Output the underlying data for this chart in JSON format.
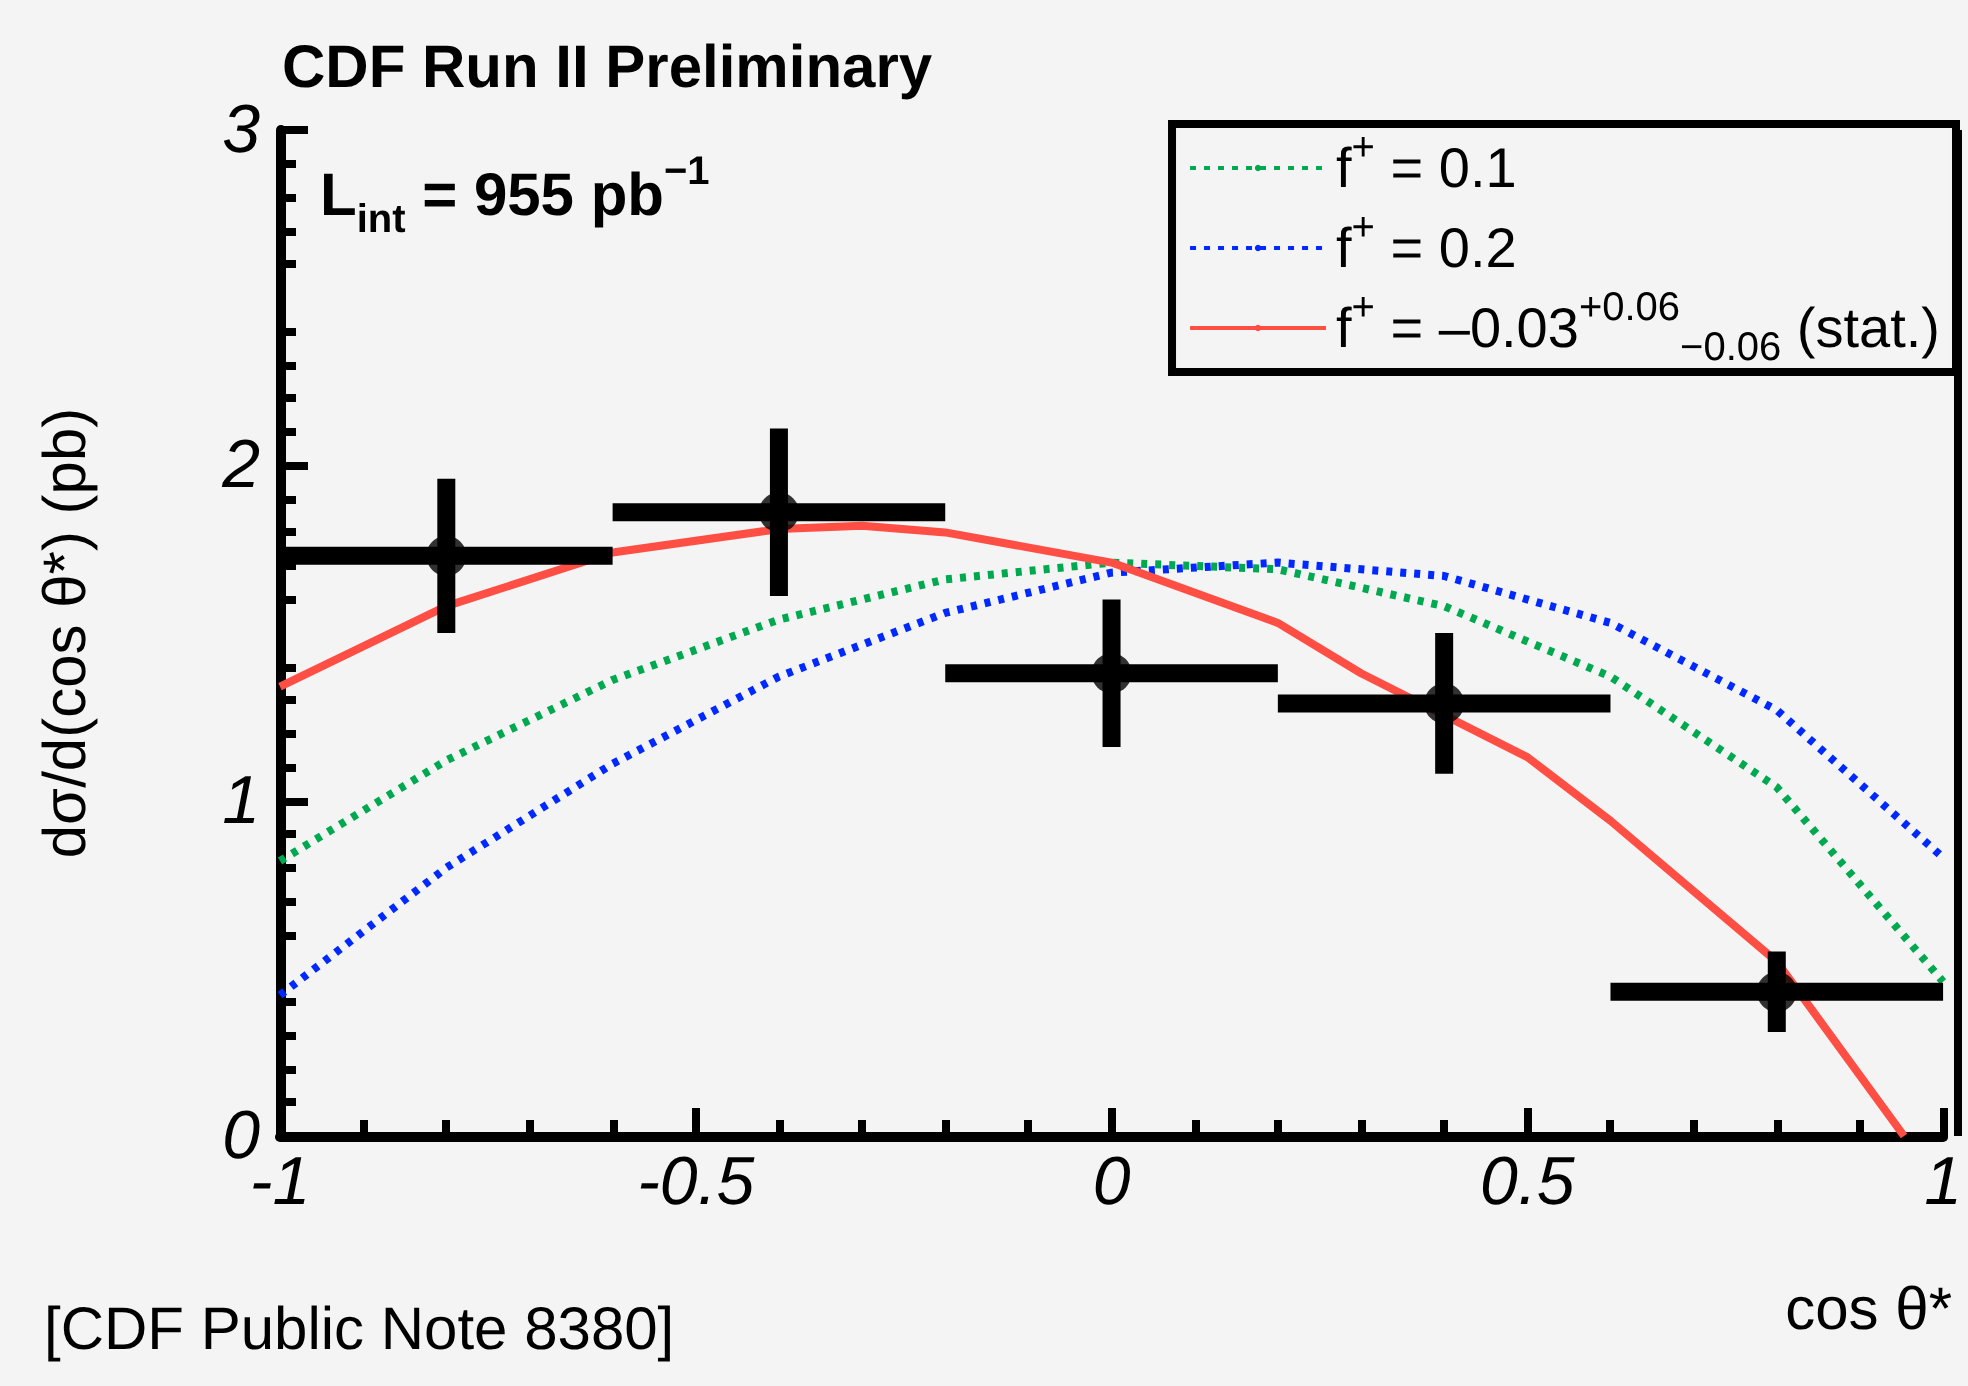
{
  "chart_data": {
    "type": "line",
    "title": "CDF Run II Preliminary",
    "xlabel": "cos θ*",
    "ylabel": "dσ/d(cos θ*) (pb)",
    "annotations": [
      "L$_{int}$ = 955 pb$^{−1}$",
      "[CDF Public Note 8380]"
    ],
    "series": [
      {
        "name": "f$^{+}$ = 0.1",
        "color": "#00a94f",
        "line_style": "dotted",
        "x": [
          -1,
          -0.8,
          -0.6,
          -0.4,
          -0.2,
          0,
          0.2,
          0.4,
          0.6,
          0.8,
          1
        ],
        "values": [
          0.82,
          1.12,
          1.36,
          1.54,
          1.66,
          1.71,
          1.69,
          1.58,
          1.37,
          1.04,
          0.46
        ]
      },
      {
        "name": "f$^{+}$ = 0.2",
        "color": "#0029ff",
        "line_style": "dotted",
        "x": [
          -1,
          -0.8,
          -0.6,
          -0.4,
          -0.2,
          0,
          0.2,
          0.4,
          0.6,
          0.8,
          1
        ],
        "values": [
          0.42,
          0.8,
          1.11,
          1.37,
          1.56,
          1.68,
          1.71,
          1.67,
          1.53,
          1.27,
          0.83
        ]
      },
      {
        "name": "f$^{+}$ = –0.03$^{+0.06}$$_{−0.06}$ (stat.)",
        "color": "#ff4f45",
        "line_style": "solid",
        "x": [
          -1,
          -0.8,
          -0.6,
          -0.4,
          -0.3,
          -0.2,
          0,
          0.2,
          0.3,
          0.5,
          0.6,
          0.8,
          0.953
        ],
        "values": [
          1.34,
          1.58,
          1.74,
          1.81,
          1.82,
          1.8,
          1.71,
          1.53,
          1.38,
          1.13,
          0.94,
          0.52,
          0
        ]
      },
      {
        "type": "scatter",
        "color": "#000000",
        "marker": "circle",
        "x": [
          -0.8,
          -0.4,
          0,
          0.4,
          0.8
        ],
        "values": [
          1.73,
          1.86,
          1.38,
          1.29,
          0.43
        ],
        "errors": [
          0.23,
          0.25,
          0.22,
          0.21,
          0.12
        ],
        "xerrors": [
          0.2,
          0.2,
          0.2,
          0.2,
          0.2
        ]
      }
    ],
    "xlim": [
      -1,
      1
    ],
    "xticks": [
      -1,
      -0.5,
      0,
      0.5,
      1
    ],
    "ylim": [
      0,
      3
    ],
    "yticks": [
      0,
      1,
      2,
      3
    ],
    "grid": false,
    "legend": "top right"
  }
}
